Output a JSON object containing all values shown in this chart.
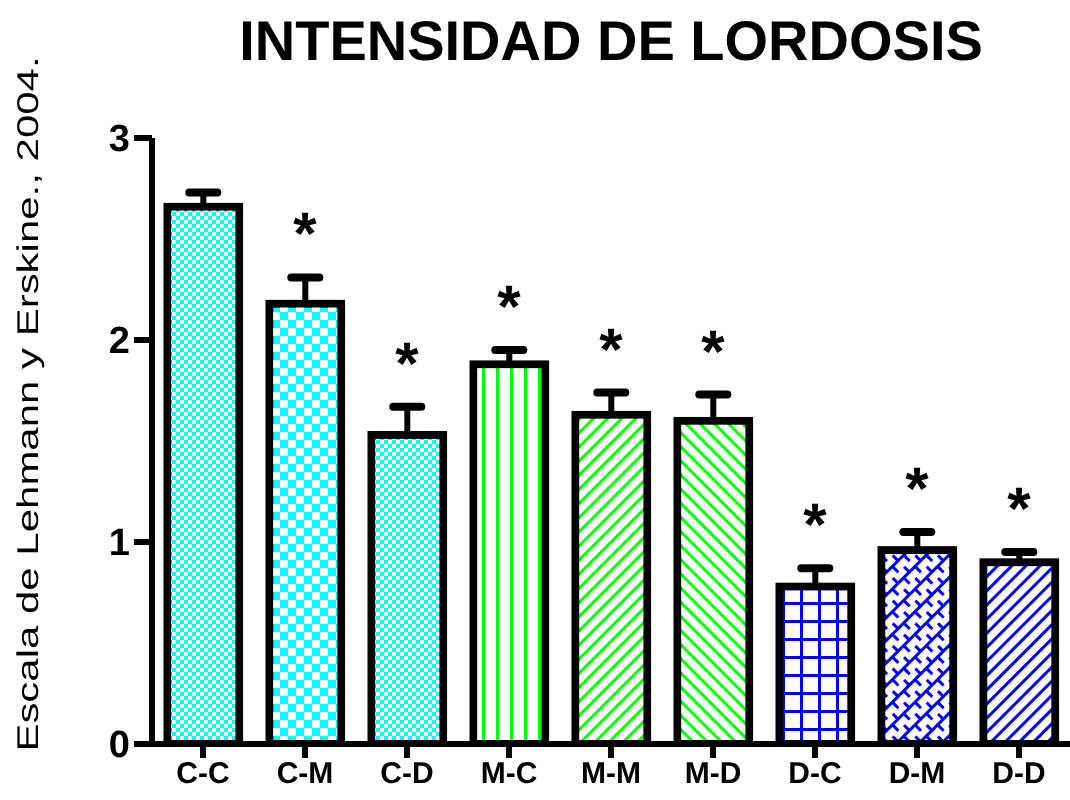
{
  "chart_data": {
    "type": "bar",
    "title": "INTENSIDAD DE LORDOSIS",
    "ylabel": "Escala de Lehmann y Erskine., 2004.",
    "categories": [
      "C-C",
      "C-M",
      "C-D",
      "M-C",
      "M-M",
      "M-D",
      "D-C",
      "D-M",
      "D-D"
    ],
    "values": [
      2.66,
      2.18,
      1.53,
      1.88,
      1.63,
      1.6,
      0.78,
      0.96,
      0.9
    ],
    "errors": [
      0.07,
      0.13,
      0.14,
      0.07,
      0.11,
      0.13,
      0.09,
      0.09,
      0.05
    ],
    "colors": [
      "#00ffff",
      "#00ffff",
      "#00ffff",
      "#00ff00",
      "#00ff00",
      "#00ff00",
      "#0000ff",
      "#0000ff",
      "#0000ff"
    ],
    "ylim": [
      0,
      3
    ],
    "yticks": [
      0,
      1,
      2,
      3
    ],
    "annotations": [
      {
        "text": "*",
        "x": "C-M",
        "y": 2.18
      },
      {
        "text": "*",
        "x": "C-D",
        "y": 1.53
      },
      {
        "text": "*",
        "x": "M-C",
        "y": 1.88
      },
      {
        "text": "*",
        "x": "M-M",
        "y": 1.63
      },
      {
        "text": "*",
        "x": "M-D",
        "y": 1.6
      },
      {
        "text": "*",
        "x": "D-C",
        "y": 0.78
      },
      {
        "text": "*",
        "x": "D-M",
        "y": 0.96
      },
      {
        "text": "*",
        "x": "D-D",
        "y": 0.9
      }
    ]
  }
}
